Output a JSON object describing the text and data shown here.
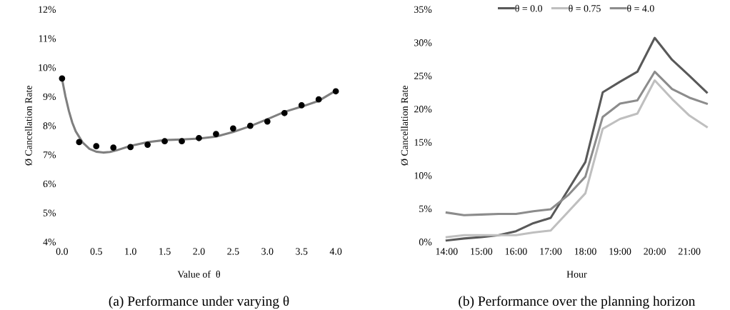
{
  "chart_data": [
    {
      "type": "scatter",
      "title": "(a) Performance under varying θ",
      "xlabel": "Value of  θ",
      "ylabel": "Ø Cancellation Rate",
      "legend": false,
      "grid": false,
      "xlim": [
        0,
        4
      ],
      "xticks": [
        {
          "value": 0,
          "label": "0.0"
        },
        {
          "value": 0.5,
          "label": "0.5"
        },
        {
          "value": 1,
          "label": "1.0"
        },
        {
          "value": 1.5,
          "label": "1.5"
        },
        {
          "value": 2,
          "label": "2.0"
        },
        {
          "value": 2.5,
          "label": "2.5"
        },
        {
          "value": 3,
          "label": "3.0"
        },
        {
          "value": 3.5,
          "label": "3.5"
        },
        {
          "value": 4,
          "label": "4.0"
        }
      ],
      "ylim": [
        4,
        12
      ],
      "yticks": [
        {
          "value": 4,
          "label": "4%"
        },
        {
          "value": 5,
          "label": "5%"
        },
        {
          "value": 6,
          "label": "6%"
        },
        {
          "value": 7,
          "label": "7%"
        },
        {
          "value": 8,
          "label": "8%"
        },
        {
          "value": 9,
          "label": "9%"
        },
        {
          "value": 10,
          "label": "10%"
        },
        {
          "value": 11,
          "label": "11%"
        },
        {
          "value": 12,
          "label": "12%"
        }
      ],
      "series": [
        {
          "type": "scatter",
          "marker": "circle",
          "color": "#000000",
          "x": [
            0,
            0.25,
            0.5,
            0.75,
            1,
            1.25,
            1.5,
            1.75,
            2,
            2.25,
            2.5,
            2.75,
            3,
            3.25,
            3.5,
            3.75,
            4
          ],
          "values": [
            9.62,
            7.43,
            7.29,
            7.24,
            7.26,
            7.34,
            7.46,
            7.46,
            7.57,
            7.71,
            7.9,
            7.99,
            8.14,
            8.43,
            8.7,
            8.9,
            9.18
          ]
        },
        {
          "type": "line",
          "color": "#7f7f7f",
          "x": [
            0,
            0.05,
            0.1,
            0.15,
            0.2,
            0.3,
            0.4,
            0.5,
            0.6,
            0.7,
            0.8,
            1,
            1.25,
            1.5,
            1.75,
            2,
            2.25,
            2.5,
            2.75,
            3,
            3.25,
            3.5,
            3.75,
            4
          ],
          "values": [
            9.6,
            9.0,
            8.5,
            8.1,
            7.8,
            7.42,
            7.2,
            7.1,
            7.07,
            7.09,
            7.15,
            7.3,
            7.43,
            7.5,
            7.52,
            7.55,
            7.62,
            7.78,
            7.98,
            8.22,
            8.47,
            8.65,
            8.85,
            9.2
          ]
        }
      ]
    },
    {
      "type": "line",
      "title": "(b) Performance over the planning horizon",
      "xlabel": "Hour",
      "ylabel": "Ø Cancellation Rate",
      "legend": "top",
      "grid": false,
      "line_style": "solid",
      "marker": "none",
      "categories": [
        "14:00",
        null,
        "15:00",
        null,
        "16:00",
        null,
        "17:00",
        null,
        "18:00",
        null,
        "19:00",
        null,
        "20:00",
        null,
        "21:00",
        null
      ],
      "ylim": [
        0,
        35
      ],
      "yticks": [
        {
          "value": 0,
          "label": "0%"
        },
        {
          "value": 5,
          "label": "5%"
        },
        {
          "value": 10,
          "label": "10%"
        },
        {
          "value": 15,
          "label": "15%"
        },
        {
          "value": 20,
          "label": "20%"
        },
        {
          "value": 25,
          "label": "25%"
        },
        {
          "value": 30,
          "label": "30%"
        },
        {
          "value": 35,
          "label": "35%"
        }
      ],
      "series": [
        {
          "name": "θ = 0.0",
          "color": "#595959",
          "values": [
            0.2,
            0.5,
            0.7,
            1.0,
            1.6,
            2.8,
            3.6,
            7.8,
            12.0,
            22.5,
            24.1,
            25.6,
            30.7,
            27.4,
            25.0,
            22.5
          ]
        },
        {
          "name": "θ = 0.75",
          "color": "#bfbfbf",
          "values": [
            0.7,
            1.0,
            1.0,
            1.0,
            1.0,
            1.4,
            1.7,
            4.5,
            7.3,
            17.0,
            18.5,
            19.3,
            24.3,
            21.5,
            19.0,
            17.3
          ]
        },
        {
          "name": "θ = 4.0",
          "color": "#8c8c8c",
          "values": [
            4.4,
            4.0,
            4.1,
            4.2,
            4.2,
            4.6,
            4.9,
            7.0,
            9.8,
            18.8,
            20.8,
            21.3,
            25.6,
            23.0,
            21.7,
            20.8
          ]
        }
      ]
    }
  ]
}
